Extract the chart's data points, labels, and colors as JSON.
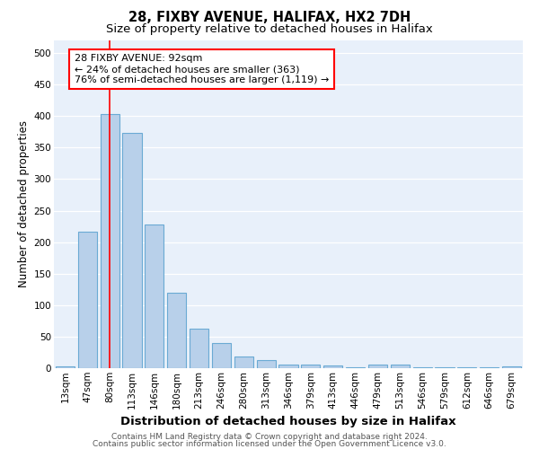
{
  "title": "28, FIXBY AVENUE, HALIFAX, HX2 7DH",
  "subtitle": "Size of property relative to detached houses in Halifax",
  "xlabel": "Distribution of detached houses by size in Halifax",
  "ylabel": "Number of detached properties",
  "categories": [
    "13sqm",
    "47sqm",
    "80sqm",
    "113sqm",
    "146sqm",
    "180sqm",
    "213sqm",
    "246sqm",
    "280sqm",
    "313sqm",
    "346sqm",
    "379sqm",
    "413sqm",
    "446sqm",
    "479sqm",
    "513sqm",
    "546sqm",
    "579sqm",
    "612sqm",
    "646sqm",
    "679sqm"
  ],
  "values": [
    3,
    216,
    403,
    373,
    228,
    120,
    63,
    40,
    18,
    13,
    6,
    5,
    4,
    1,
    5,
    6,
    1,
    1,
    1,
    2,
    3
  ],
  "bar_color": "#b8d0ea",
  "bar_edge_color": "#6aaad4",
  "red_line_x": 2.0,
  "annotation_text": "28 FIXBY AVENUE: 92sqm\n← 24% of detached houses are smaller (363)\n76% of semi-detached houses are larger (1,119) →",
  "annotation_box_color": "white",
  "annotation_box_edge_color": "red",
  "background_color": "#e8f0fa",
  "grid_color": "white",
  "ylim": [
    0,
    520
  ],
  "yticks": [
    0,
    50,
    100,
    150,
    200,
    250,
    300,
    350,
    400,
    450,
    500
  ],
  "footer_line1": "Contains HM Land Registry data © Crown copyright and database right 2024.",
  "footer_line2": "Contains public sector information licensed under the Open Government Licence v3.0.",
  "title_fontsize": 10.5,
  "subtitle_fontsize": 9.5,
  "xlabel_fontsize": 9.5,
  "ylabel_fontsize": 8.5,
  "tick_fontsize": 7.5,
  "annotation_fontsize": 8,
  "footer_fontsize": 6.5
}
